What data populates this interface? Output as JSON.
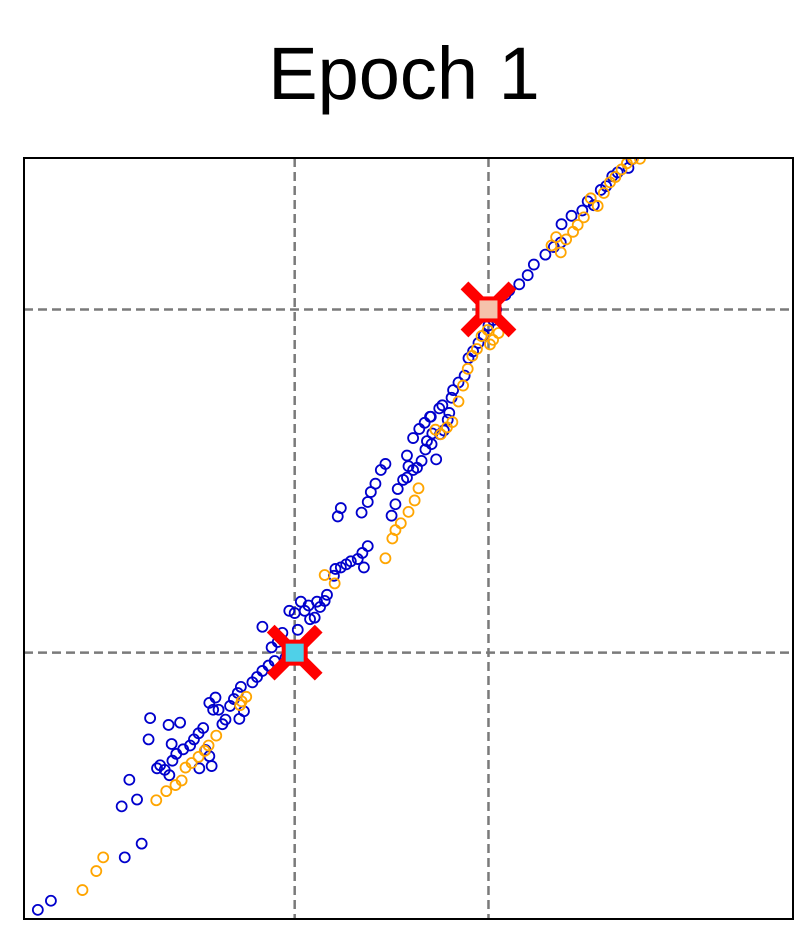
{
  "chart_data": {
    "type": "scatter",
    "title": "Epoch 1",
    "xlabel": "",
    "ylabel": "",
    "xlim": [
      0,
      1
    ],
    "ylim": [
      0,
      1
    ],
    "axis_ticks_shown": false,
    "gridlines": {
      "style": "dashed",
      "color": "#7a7a7a",
      "x": [
        0.352,
        0.604
      ],
      "y": [
        0.35,
        0.801
      ]
    },
    "colors": {
      "series_a": "#0000cc",
      "series_b": "#ffa500",
      "cross": "#ff0000",
      "marker_low_fill": "#4fd0e8",
      "marker_high_fill": "#f5c2ab"
    },
    "series": [
      {
        "color_key": "series_a",
        "points": [
          [
            0.018,
            0.012
          ],
          [
            0.035,
            0.024
          ],
          [
            0.131,
            0.081
          ],
          [
            0.153,
            0.099
          ],
          [
            0.127,
            0.148
          ],
          [
            0.147,
            0.157
          ],
          [
            0.173,
            0.198
          ],
          [
            0.177,
            0.202
          ],
          [
            0.183,
            0.196
          ],
          [
            0.189,
            0.189
          ],
          [
            0.193,
            0.208
          ],
          [
            0.198,
            0.217
          ],
          [
            0.207,
            0.223
          ],
          [
            0.203,
            0.258
          ],
          [
            0.216,
            0.228
          ],
          [
            0.221,
            0.236
          ],
          [
            0.227,
            0.244
          ],
          [
            0.233,
            0.251
          ],
          [
            0.236,
            0.222
          ],
          [
            0.241,
            0.214
          ],
          [
            0.244,
            0.201
          ],
          [
            0.228,
            0.198
          ],
          [
            0.137,
            0.183
          ],
          [
            0.162,
            0.236
          ],
          [
            0.164,
            0.264
          ],
          [
            0.188,
            0.255
          ],
          [
            0.192,
            0.23
          ],
          [
            0.246,
            0.275
          ],
          [
            0.241,
            0.284
          ],
          [
            0.249,
            0.291
          ],
          [
            0.253,
            0.275
          ],
          [
            0.258,
            0.256
          ],
          [
            0.262,
            0.262
          ],
          [
            0.268,
            0.28
          ],
          [
            0.273,
            0.289
          ],
          [
            0.278,
            0.297
          ],
          [
            0.282,
            0.305
          ],
          [
            0.28,
            0.263
          ],
          [
            0.286,
            0.273
          ],
          [
            0.297,
            0.311
          ],
          [
            0.303,
            0.318
          ],
          [
            0.31,
            0.326
          ],
          [
            0.318,
            0.333
          ],
          [
            0.326,
            0.339
          ],
          [
            0.322,
            0.357
          ],
          [
            0.31,
            0.384
          ],
          [
            0.33,
            0.364
          ],
          [
            0.34,
            0.343
          ],
          [
            0.336,
            0.376
          ],
          [
            0.345,
            0.405
          ],
          [
            0.352,
            0.402
          ],
          [
            0.356,
            0.38
          ],
          [
            0.36,
            0.417
          ],
          [
            0.365,
            0.405
          ],
          [
            0.37,
            0.412
          ],
          [
            0.372,
            0.394
          ],
          [
            0.378,
            0.396
          ],
          [
            0.381,
            0.417
          ],
          [
            0.385,
            0.41
          ],
          [
            0.391,
            0.418
          ],
          [
            0.394,
            0.426
          ],
          [
            0.403,
            0.451
          ],
          [
            0.405,
            0.46
          ],
          [
            0.412,
            0.462
          ],
          [
            0.419,
            0.466
          ],
          [
            0.425,
            0.47
          ],
          [
            0.434,
            0.473
          ],
          [
            0.44,
            0.481
          ],
          [
            0.447,
            0.49
          ],
          [
            0.442,
            0.462
          ],
          [
            0.408,
            0.529
          ],
          [
            0.412,
            0.54
          ],
          [
            0.439,
            0.534
          ],
          [
            0.447,
            0.548
          ],
          [
            0.451,
            0.561
          ],
          [
            0.457,
            0.572
          ],
          [
            0.464,
            0.59
          ],
          [
            0.47,
            0.598
          ],
          [
            0.478,
            0.53
          ],
          [
            0.483,
            0.545
          ],
          [
            0.486,
            0.565
          ],
          [
            0.493,
            0.577
          ],
          [
            0.498,
            0.58
          ],
          [
            0.5,
            0.595
          ],
          [
            0.506,
            0.59
          ],
          [
            0.511,
            0.593
          ],
          [
            0.517,
            0.602
          ],
          [
            0.522,
            0.617
          ],
          [
            0.524,
            0.628
          ],
          [
            0.53,
            0.624
          ],
          [
            0.536,
            0.604
          ],
          [
            0.541,
            0.637
          ],
          [
            0.546,
            0.642
          ],
          [
            0.551,
            0.656
          ],
          [
            0.553,
            0.665
          ],
          [
            0.556,
            0.685
          ],
          [
            0.498,
            0.609
          ],
          [
            0.506,
            0.632
          ],
          [
            0.514,
            0.644
          ],
          [
            0.521,
            0.652
          ],
          [
            0.528,
            0.66
          ],
          [
            0.529,
            0.66
          ],
          [
            0.531,
            0.638
          ],
          [
            0.54,
            0.671
          ],
          [
            0.544,
            0.675
          ],
          [
            0.558,
            0.695
          ],
          [
            0.565,
            0.705
          ],
          [
            0.573,
            0.714
          ],
          [
            0.578,
            0.737
          ],
          [
            0.584,
            0.746
          ],
          [
            0.591,
            0.757
          ],
          [
            0.598,
            0.767
          ],
          [
            0.604,
            0.78
          ],
          [
            0.61,
            0.787
          ],
          [
            0.614,
            0.801
          ],
          [
            0.626,
            0.82
          ],
          [
            0.631,
            0.826
          ],
          [
            0.644,
            0.834
          ],
          [
            0.655,
            0.846
          ],
          [
            0.663,
            0.86
          ],
          [
            0.678,
            0.873
          ],
          [
            0.689,
            0.883
          ],
          [
            0.698,
            0.889
          ],
          [
            0.699,
            0.913
          ],
          [
            0.712,
            0.924
          ],
          [
            0.726,
            0.931
          ],
          [
            0.733,
            0.943
          ],
          [
            0.741,
            0.938
          ],
          [
            0.75,
            0.958
          ],
          [
            0.757,
            0.963
          ],
          [
            0.765,
            0.976
          ],
          [
            0.772,
            0.981
          ],
          [
            0.786,
            0.987
          ],
          [
            0.79,
            0.998
          ]
        ]
      },
      {
        "color_key": "series_b",
        "points": [
          [
            0.076,
            0.038
          ],
          [
            0.094,
            0.063
          ],
          [
            0.103,
            0.081
          ],
          [
            0.172,
            0.156
          ],
          [
            0.185,
            0.168
          ],
          [
            0.197,
            0.176
          ],
          [
            0.205,
            0.182
          ],
          [
            0.21,
            0.199
          ],
          [
            0.218,
            0.205
          ],
          [
            0.227,
            0.213
          ],
          [
            0.235,
            0.221
          ],
          [
            0.24,
            0.228
          ],
          [
            0.25,
            0.241
          ],
          [
            0.281,
            0.281
          ],
          [
            0.283,
            0.286
          ],
          [
            0.289,
            0.292
          ],
          [
            0.391,
            0.452
          ],
          [
            0.404,
            0.441
          ],
          [
            0.47,
            0.474
          ],
          [
            0.479,
            0.5
          ],
          [
            0.483,
            0.511
          ],
          [
            0.49,
            0.52
          ],
          [
            0.5,
            0.535
          ],
          [
            0.508,
            0.55
          ],
          [
            0.513,
            0.566
          ],
          [
            0.535,
            0.643
          ],
          [
            0.542,
            0.637
          ],
          [
            0.55,
            0.646
          ],
          [
            0.557,
            0.653
          ],
          [
            0.565,
            0.68
          ],
          [
            0.571,
            0.701
          ],
          [
            0.577,
            0.723
          ],
          [
            0.583,
            0.74
          ],
          [
            0.589,
            0.749
          ],
          [
            0.595,
            0.766
          ],
          [
            0.603,
            0.774
          ],
          [
            0.606,
            0.755
          ],
          [
            0.61,
            0.761
          ],
          [
            0.617,
            0.77
          ],
          [
            0.686,
            0.885
          ],
          [
            0.692,
            0.896
          ],
          [
            0.698,
            0.876
          ],
          [
            0.705,
            0.893
          ],
          [
            0.714,
            0.903
          ],
          [
            0.72,
            0.912
          ],
          [
            0.728,
            0.922
          ],
          [
            0.737,
            0.947
          ],
          [
            0.746,
            0.937
          ],
          [
            0.754,
            0.954
          ],
          [
            0.762,
            0.968
          ],
          [
            0.769,
            0.975
          ],
          [
            0.777,
            0.985
          ],
          [
            0.784,
            0.993
          ],
          [
            0.792,
            0.999
          ],
          [
            0.801,
            0.999
          ]
        ]
      }
    ],
    "highlight_markers": [
      {
        "x": 0.352,
        "y": 0.35,
        "fill_key": "marker_low_fill"
      },
      {
        "x": 0.604,
        "y": 0.801,
        "fill_key": "marker_high_fill"
      }
    ]
  }
}
